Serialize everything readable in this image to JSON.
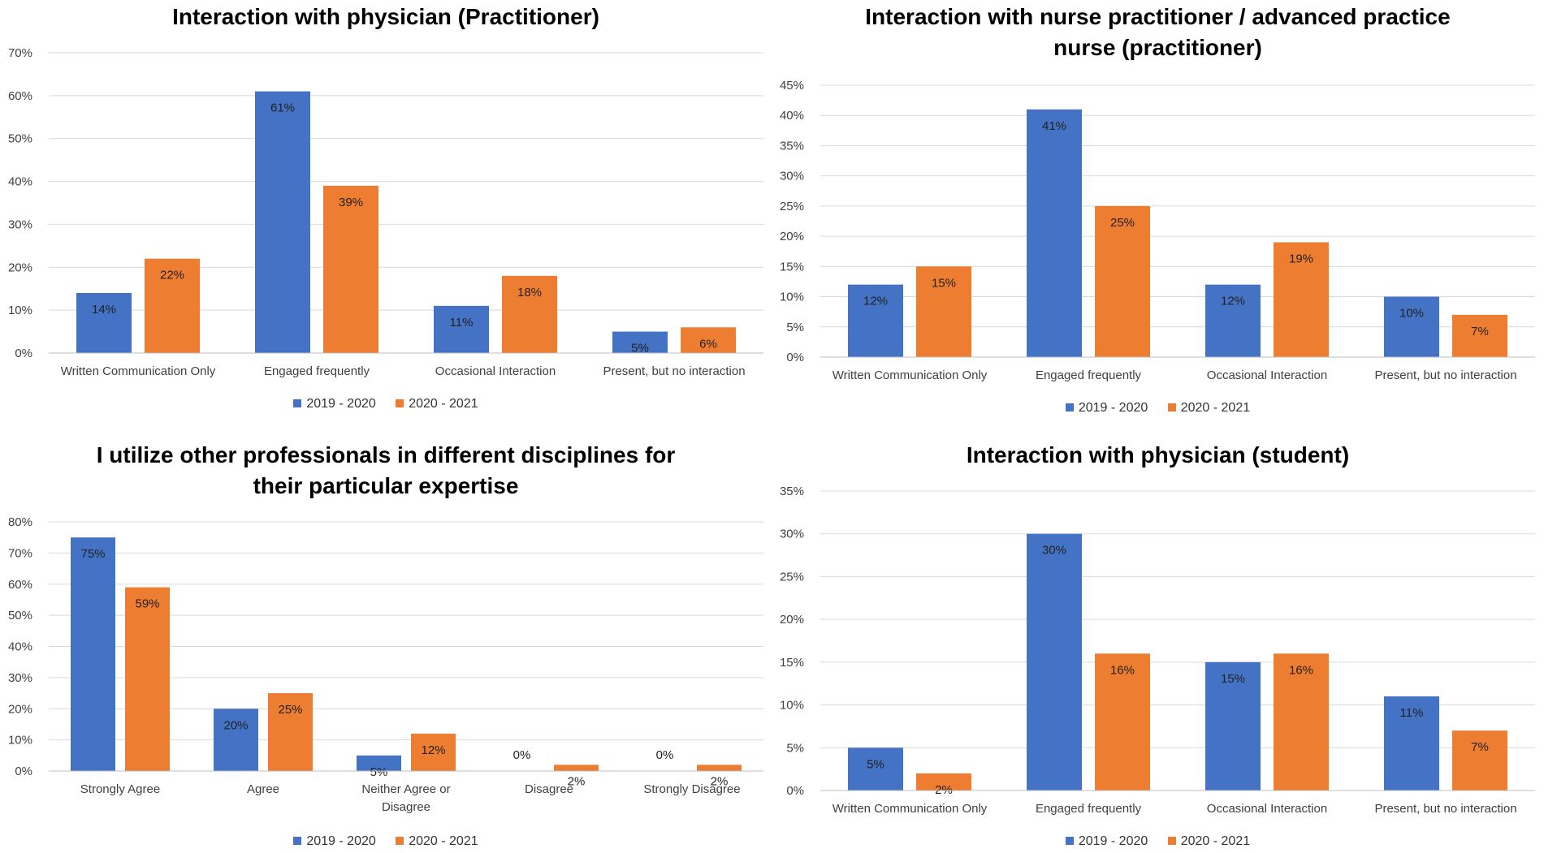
{
  "colors": {
    "series_1": "#4472C4",
    "series_2": "#ED7D31",
    "grid": "#D9D9D9",
    "axis_text": "#404040"
  },
  "chart_data": [
    {
      "type": "bar",
      "title": "Interaction with physician (Practitioner)",
      "categories": [
        "Written Communication Only",
        "Engaged frequently",
        "Occasional Interaction",
        "Present, but no interaction"
      ],
      "series": [
        {
          "name": "2019 - 2020",
          "values": [
            14,
            61,
            11,
            5
          ],
          "labels": [
            "14%",
            "61%",
            "11%",
            "5%"
          ]
        },
        {
          "name": "2020 - 2021",
          "values": [
            22,
            39,
            18,
            6
          ],
          "labels": [
            "22%",
            "39%",
            "18%",
            "6%"
          ]
        }
      ],
      "ylim": [
        0,
        70
      ],
      "yticks": [
        "0%",
        "10%",
        "20%",
        "30%",
        "40%",
        "50%",
        "60%",
        "70%"
      ],
      "legend": "bottom",
      "grid": true
    },
    {
      "type": "bar",
      "title": "Interaction with nurse practitioner / advanced practice nurse (practitioner)",
      "categories": [
        "Written Communication Only",
        "Engaged frequently",
        "Occasional Interaction",
        "Present, but no interaction"
      ],
      "series": [
        {
          "name": "2019 - 2020",
          "values": [
            12,
            41,
            12,
            10
          ],
          "labels": [
            "12%",
            "41%",
            "12%",
            "10%"
          ]
        },
        {
          "name": "2020 - 2021",
          "values": [
            15,
            25,
            19,
            7
          ],
          "labels": [
            "15%",
            "25%",
            "19%",
            "7%"
          ]
        }
      ],
      "ylim": [
        0,
        45
      ],
      "yticks": [
        "0%",
        "5%",
        "10%",
        "15%",
        "20%",
        "25%",
        "30%",
        "35%",
        "40%",
        "45%"
      ],
      "legend": "bottom",
      "grid": true
    },
    {
      "type": "bar",
      "title": "I utilize other professionals in different disciplines for their particular expertise",
      "categories": [
        "Strongly Agree",
        "Agree",
        "Neither Agree or Disagree",
        "Disagree",
        "Strongly Disagree"
      ],
      "series": [
        {
          "name": "2019 - 2020",
          "values": [
            75,
            20,
            5,
            0,
            0
          ],
          "labels": [
            "75%",
            "20%",
            "5%",
            "0%",
            "0%"
          ]
        },
        {
          "name": "2020 - 2021",
          "values": [
            59,
            25,
            12,
            2,
            2
          ],
          "labels": [
            "59%",
            "25%",
            "12%",
            "2%",
            "2%"
          ]
        }
      ],
      "ylim": [
        0,
        80
      ],
      "yticks": [
        "0%",
        "10%",
        "20%",
        "30%",
        "40%",
        "50%",
        "60%",
        "70%",
        "80%"
      ],
      "legend": "bottom",
      "grid": true
    },
    {
      "type": "bar",
      "title": "Interaction with physician (student)",
      "categories": [
        "Written Communication Only",
        "Engaged frequently",
        "Occasional Interaction",
        "Present, but no interaction"
      ],
      "series": [
        {
          "name": "2019 - 2020",
          "values": [
            5,
            30,
            15,
            11
          ],
          "labels": [
            "5%",
            "30%",
            "15%",
            "11%"
          ]
        },
        {
          "name": "2020 - 2021",
          "values": [
            2,
            16,
            16,
            7
          ],
          "labels": [
            "2%",
            "16%",
            "16%",
            "7%"
          ]
        }
      ],
      "ylim": [
        0,
        35
      ],
      "yticks": [
        "0%",
        "5%",
        "10%",
        "15%",
        "20%",
        "25%",
        "30%",
        "35%"
      ],
      "legend": "bottom",
      "grid": true
    }
  ]
}
